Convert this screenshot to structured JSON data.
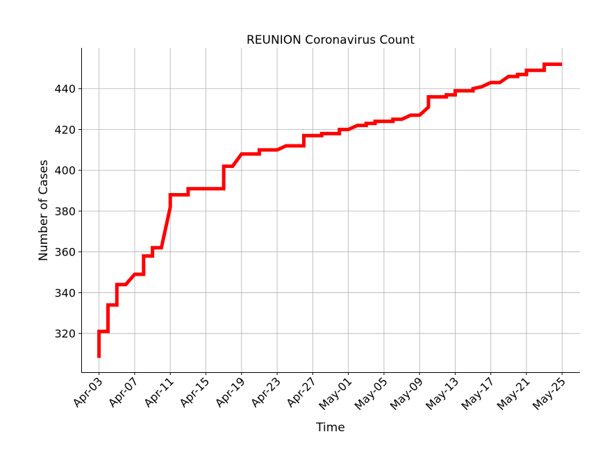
{
  "chart_data": {
    "type": "line",
    "title": "REUNION Coronavirus Count",
    "xlabel": "Time",
    "ylabel": "Number of Cases",
    "x_type": "date",
    "xlim": [
      "2020-04-01",
      "2020-05-27"
    ],
    "ylim": [
      301,
      460
    ],
    "y_ticks": [
      320,
      340,
      360,
      380,
      400,
      420,
      440
    ],
    "x_ticks": [
      {
        "date": "2020-04-03",
        "label": "Apr-03"
      },
      {
        "date": "2020-04-07",
        "label": "Apr-07"
      },
      {
        "date": "2020-04-11",
        "label": "Apr-11"
      },
      {
        "date": "2020-04-15",
        "label": "Apr-15"
      },
      {
        "date": "2020-04-19",
        "label": "Apr-19"
      },
      {
        "date": "2020-04-23",
        "label": "Apr-23"
      },
      {
        "date": "2020-04-27",
        "label": "Apr-27"
      },
      {
        "date": "2020-05-01",
        "label": "May-01"
      },
      {
        "date": "2020-05-05",
        "label": "May-05"
      },
      {
        "date": "2020-05-09",
        "label": "May-09"
      },
      {
        "date": "2020-05-13",
        "label": "May-13"
      },
      {
        "date": "2020-05-17",
        "label": "May-17"
      },
      {
        "date": "2020-05-21",
        "label": "May-21"
      },
      {
        "date": "2020-05-25",
        "label": "May-25"
      }
    ],
    "grid": true,
    "series": [
      {
        "color": "#ff0000",
        "points": [
          [
            "2020-04-03",
            308
          ],
          [
            "2020-04-03",
            321
          ],
          [
            "2020-04-04",
            321
          ],
          [
            "2020-04-04",
            334
          ],
          [
            "2020-04-05",
            334
          ],
          [
            "2020-04-05",
            344
          ],
          [
            "2020-04-06",
            344
          ],
          [
            "2020-04-07",
            349
          ],
          [
            "2020-04-08",
            349
          ],
          [
            "2020-04-08",
            358
          ],
          [
            "2020-04-09",
            358
          ],
          [
            "2020-04-09",
            362
          ],
          [
            "2020-04-10",
            362
          ],
          [
            "2020-04-11",
            382
          ],
          [
            "2020-04-11",
            388
          ],
          [
            "2020-04-13",
            388
          ],
          [
            "2020-04-13",
            391
          ],
          [
            "2020-04-17",
            391
          ],
          [
            "2020-04-17",
            402
          ],
          [
            "2020-04-18",
            402
          ],
          [
            "2020-04-19",
            408
          ],
          [
            "2020-04-21",
            408
          ],
          [
            "2020-04-21",
            410
          ],
          [
            "2020-04-23",
            410
          ],
          [
            "2020-04-24",
            412
          ],
          [
            "2020-04-26",
            412
          ],
          [
            "2020-04-26",
            417
          ],
          [
            "2020-04-28",
            417
          ],
          [
            "2020-04-28",
            418
          ],
          [
            "2020-04-30",
            418
          ],
          [
            "2020-04-30",
            420
          ],
          [
            "2020-05-01",
            420
          ],
          [
            "2020-05-02",
            422
          ],
          [
            "2020-05-03",
            422
          ],
          [
            "2020-05-03",
            423
          ],
          [
            "2020-05-04",
            423
          ],
          [
            "2020-05-04",
            424
          ],
          [
            "2020-05-06",
            424
          ],
          [
            "2020-05-06",
            425
          ],
          [
            "2020-05-07",
            425
          ],
          [
            "2020-05-08",
            427
          ],
          [
            "2020-05-09",
            427
          ],
          [
            "2020-05-10",
            431
          ],
          [
            "2020-05-10",
            436
          ],
          [
            "2020-05-12",
            436
          ],
          [
            "2020-05-12",
            437
          ],
          [
            "2020-05-13",
            437
          ],
          [
            "2020-05-13",
            439
          ],
          [
            "2020-05-15",
            439
          ],
          [
            "2020-05-15",
            440
          ],
          [
            "2020-05-16",
            441
          ],
          [
            "2020-05-17",
            443
          ],
          [
            "2020-05-18",
            443
          ],
          [
            "2020-05-19",
            446
          ],
          [
            "2020-05-20",
            446
          ],
          [
            "2020-05-20",
            447
          ],
          [
            "2020-05-21",
            447
          ],
          [
            "2020-05-21",
            449
          ],
          [
            "2020-05-23",
            449
          ],
          [
            "2020-05-23",
            452
          ],
          [
            "2020-05-25",
            452
          ]
        ]
      }
    ]
  }
}
